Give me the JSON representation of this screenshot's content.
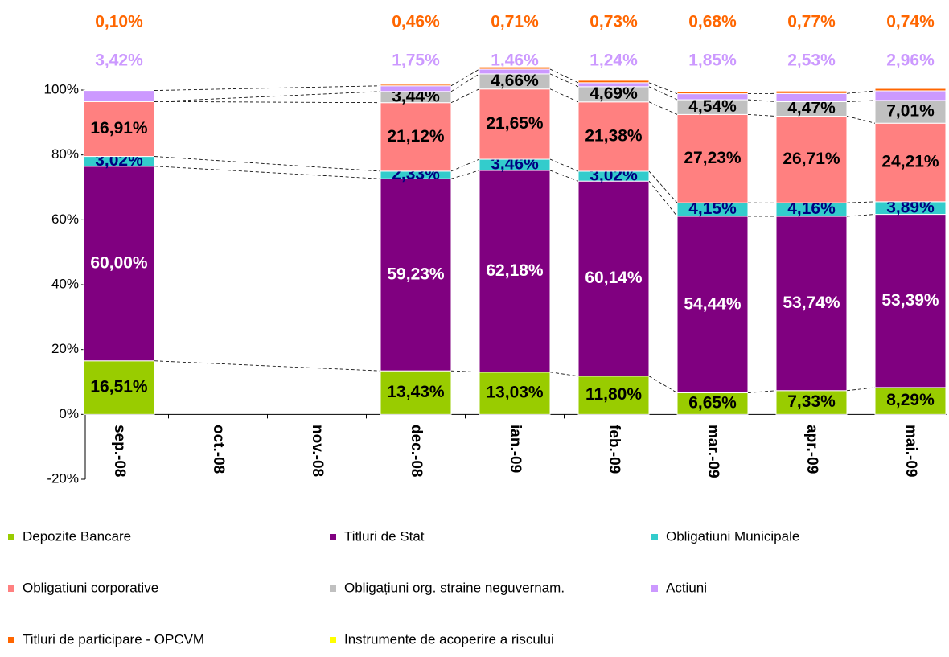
{
  "chart_data": {
    "type": "stacked-bar",
    "categories": [
      "sep.-08",
      "oct.-08",
      "nov.-08",
      "dec.-08",
      "ian.-09",
      "feb.-09",
      "mar.-09",
      "apr.-09",
      "mai.-09"
    ],
    "ylim": [
      -20,
      100
    ],
    "yticks": [
      {
        "value": -20,
        "label": "-20%"
      },
      {
        "value": 0,
        "label": "0%"
      },
      {
        "value": 20,
        "label": "20%"
      },
      {
        "value": 40,
        "label": "40%"
      },
      {
        "value": 60,
        "label": "60%"
      },
      {
        "value": 80,
        "label": "80%"
      },
      {
        "value": 100,
        "label": "100%"
      }
    ],
    "grid": false,
    "legend": "bottom",
    "series": [
      {
        "name": "Depozite Bancare",
        "color": "#99cc00",
        "label_color": "#000000",
        "values": [
          16.51,
          null,
          null,
          13.43,
          13.03,
          11.8,
          6.65,
          7.33,
          8.29
        ],
        "value_labels": [
          "16,51%",
          null,
          null,
          "13,43%",
          "13,03%",
          "11,80%",
          "6,65%",
          "7,33%",
          "8,29%"
        ]
      },
      {
        "name": "Titluri de Stat",
        "color": "#800080",
        "label_color": "#ffffff",
        "values": [
          60.0,
          null,
          null,
          59.23,
          62.18,
          60.14,
          54.44,
          53.74,
          53.39
        ],
        "value_labels": [
          "60,00%",
          null,
          null,
          "59,23%",
          "62,18%",
          "60,14%",
          "54,44%",
          "53,74%",
          "53,39%"
        ]
      },
      {
        "name": "Obligatiuni Municipale",
        "color": "#33cccc",
        "label_color": "#000080",
        "values": [
          3.02,
          null,
          null,
          2.33,
          3.46,
          3.02,
          4.15,
          4.16,
          3.89
        ],
        "value_labels": [
          "3,02%",
          null,
          null,
          "2,33%",
          "3,46%",
          "3,02%",
          "4,15%",
          "4,16%",
          "3,89%"
        ]
      },
      {
        "name": "Obligatiuni corporative",
        "color": "#ff8080",
        "label_color": "#000000",
        "values": [
          16.91,
          null,
          null,
          21.12,
          21.65,
          21.38,
          27.23,
          26.71,
          24.21
        ],
        "value_labels": [
          "16,91%",
          null,
          null,
          "21,12%",
          "21,65%",
          "21,38%",
          "27,23%",
          "26,71%",
          "24,21%"
        ]
      },
      {
        "name": "Obligațiuni org. straine neguvernam.",
        "color": "#c0c0c0",
        "label_color": "#000000",
        "values": [
          null,
          null,
          null,
          3.44,
          4.66,
          4.69,
          4.54,
          4.47,
          7.01
        ],
        "value_labels": [
          null,
          null,
          null,
          "3,44%",
          "4,66%",
          "4,69%",
          "4,54%",
          "4,47%",
          "7,01%"
        ]
      },
      {
        "name": "Actiuni",
        "color": "#cc99ff",
        "label_color": "#cc99ff",
        "labels": "above",
        "values": [
          3.42,
          null,
          null,
          1.75,
          1.46,
          1.24,
          1.85,
          2.53,
          2.96
        ],
        "value_labels": [
          "3,42%",
          null,
          null,
          "1,75%",
          "1,46%",
          "1,24%",
          "1,85%",
          "2,53%",
          "2,96%"
        ]
      },
      {
        "name": "Titluri de participare - OPCVM",
        "color": "#ff6600",
        "label_color": "#ff6600",
        "labels": "above",
        "values": [
          0.1,
          null,
          null,
          0.46,
          0.71,
          0.73,
          0.68,
          0.77,
          0.74
        ],
        "value_labels": [
          "0,10%",
          null,
          null,
          "0,46%",
          "0,71%",
          "0,73%",
          "0,68%",
          "0,77%",
          "0,74%"
        ]
      },
      {
        "name": "Instrumente de acoperire a riscului",
        "color": "#ffff00",
        "values": [
          null,
          null,
          null,
          null,
          null,
          null,
          null,
          null,
          null
        ]
      }
    ]
  }
}
